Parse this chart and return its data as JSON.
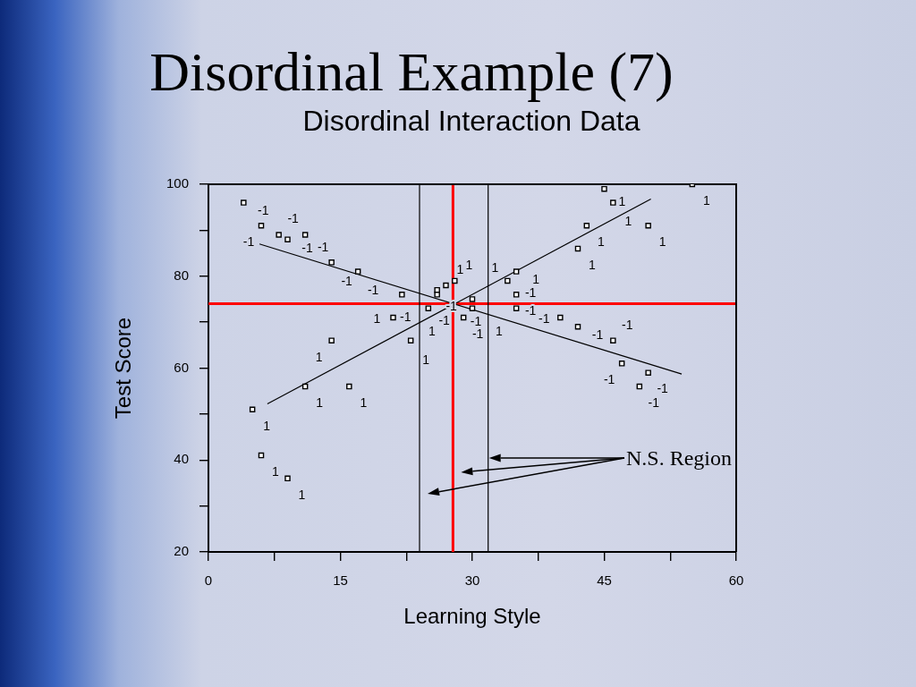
{
  "chart_data": {
    "type": "scatter",
    "title": "Disordinal Example (7)",
    "subtitle": "Disordinal Interaction Data",
    "xlabel": "Learning Style",
    "ylabel": "Test Score",
    "series": [
      {
        "name": "-1",
        "color": "#000000",
        "marker": "square",
        "x": [
          4,
          6,
          8,
          9,
          11,
          14,
          17,
          22,
          26,
          26,
          30,
          29,
          35,
          35,
          40,
          42,
          46,
          47,
          50,
          49
        ],
        "values": [
          96,
          91,
          89,
          88,
          89,
          83,
          81,
          76,
          77,
          76,
          75,
          71,
          76,
          73,
          71,
          69,
          66,
          61,
          59,
          56
        ]
      },
      {
        "name": "1",
        "color": "#000000",
        "marker": "square",
        "x": [
          14,
          11,
          16,
          5,
          6,
          9,
          21,
          25,
          27,
          28,
          30,
          23,
          34,
          35,
          45,
          46,
          43,
          50,
          42,
          55
        ],
        "values": [
          66,
          56,
          56,
          51,
          41,
          36,
          71,
          73,
          78,
          79,
          73,
          66,
          79,
          81,
          99,
          96,
          91,
          91,
          86,
          100
        ]
      },
      {
        "type": "line",
        "color": "#000000",
        "marker": "none",
        "x": [
          6.7,
          50.3
        ],
        "values": [
          52.2,
          96.8
        ]
      },
      {
        "type": "line",
        "color": "#000000",
        "marker": "none",
        "x": [
          5.8,
          53.8
        ],
        "values": [
          87,
          58.7
        ]
      }
    ],
    "xlim": [
      0,
      60
    ],
    "xticks": [
      0,
      {
        "value": 7.5,
        "label": null
      },
      15,
      {
        "value": 22.5,
        "label": null
      },
      30,
      {
        "value": 37.5,
        "label": null
      },
      45,
      {
        "value": 52.5,
        "label": null
      },
      60
    ],
    "ylim": [
      20,
      100
    ],
    "yticks": [
      20,
      {
        "value": 30,
        "label": null
      },
      40,
      {
        "value": 50,
        "label": null
      },
      60,
      {
        "value": 70,
        "label": null
      },
      80,
      {
        "value": 90,
        "label": null
      },
      100
    ],
    "ref_lines": [
      {
        "axis": "y",
        "value": 74,
        "color": "#ff0000"
      },
      {
        "axis": "x",
        "value": 27.8,
        "color": "#ff0000"
      },
      {
        "axis": "x",
        "value": 24,
        "color": "#000000"
      },
      {
        "axis": "x",
        "value": 31.8,
        "color": "#000000"
      }
    ],
    "annotations": [
      "N.S. Region"
    ]
  }
}
